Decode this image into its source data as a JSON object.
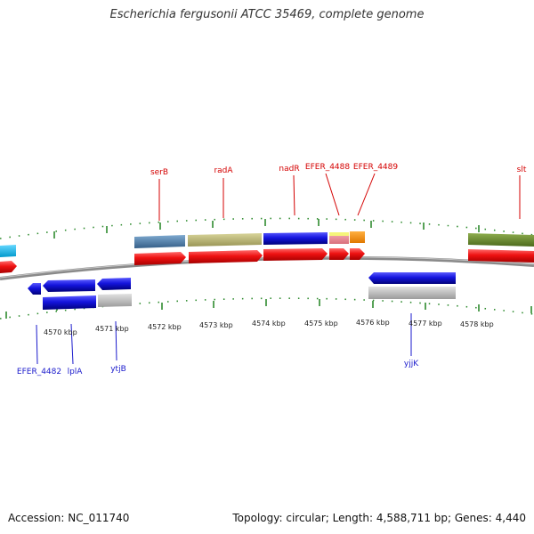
{
  "title": "Escherichia fergusonii ATCC 35469, complete genome",
  "footer": {
    "accession": "Accession: NC_011740",
    "summary": "Topology: circular; Length: 4,588,711 bp; Genes: 4,440"
  },
  "axis": {
    "ticks": [
      "4570 kbp",
      "4571 kbp",
      "4572 kbp",
      "4573 kbp",
      "4574 kbp",
      "4575 kbp",
      "4576 kbp",
      "4577 kbp",
      "4578 kbp"
    ]
  },
  "labels_top": [
    "serB",
    "radA",
    "nadR",
    "EFER_4488",
    "EFER_4489",
    "slt"
  ],
  "labels_bottom": [
    "EFER_4482",
    "lplA",
    "ytjB",
    "yjjK"
  ],
  "colors": {
    "forward_cds": "#ee1111",
    "reverse_cds": "#1a1acc",
    "tick": "#2e8b2e",
    "backbone": "#8a8a8a",
    "label_top": "#d40000",
    "label_bottom": "#1a1acc"
  }
}
